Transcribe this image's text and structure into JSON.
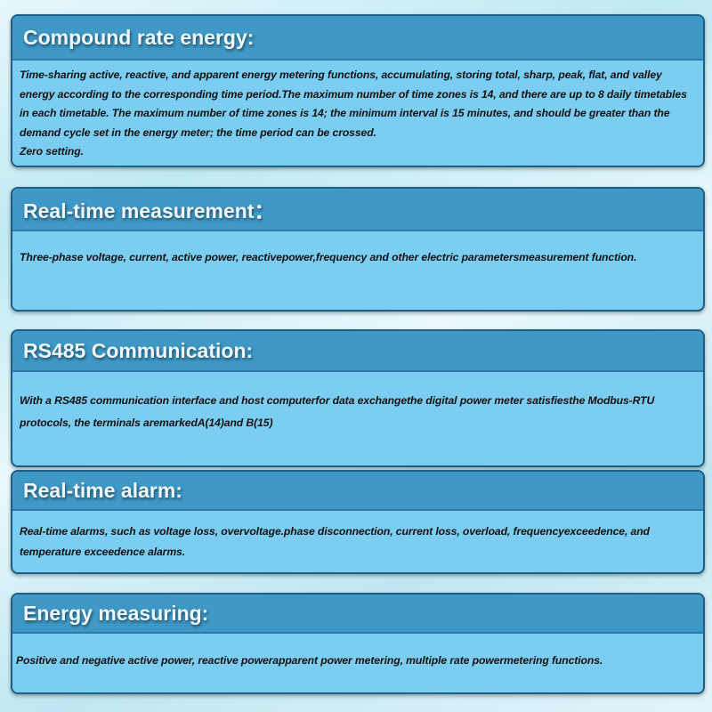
{
  "sections": [
    {
      "title": "Compound rate energy:",
      "paragraphs": [
        "Time-sharing active, reactive, and apparent energy metering functions, accumulating, storing total, sharp, peak, flat, and valley energy according to the corresponding time period.The maximum number of time zones is 14, and there are up to 8 daily timetables in each timetable. The maximum number of time zones is 14; the minimum interval is 15 minutes, and should be greater than the demand cycle set in the energy meter; the time period can be crossed.",
        "Zero setting."
      ]
    },
    {
      "title": "Real-time measurement：",
      "paragraphs": [
        "Three-phase voltage, current, active power, reactivepower,frequency and other electric parametersmeasurement function."
      ]
    },
    {
      "title": "RS485 Communication:",
      "paragraphs": [
        "With a RS485 communication interface and host computerfor data exchangethe digital power meter satisfiesthe Modbus-RTU protocols, the terminals aremarkedA(14)and B(15)"
      ]
    },
    {
      "title": "Real-time alarm:",
      "paragraphs": [
        "Real-time alarms, such as voltage loss, overvoltage.phase disconnection, current loss, overload, frequencyexceedence, and temperature exceedence alarms."
      ]
    },
    {
      "title": "Energy measuring:",
      "paragraphs": [
        "Positive and negative active power, reactive powerapparent power metering, multiple rate powermetering functions."
      ]
    }
  ]
}
